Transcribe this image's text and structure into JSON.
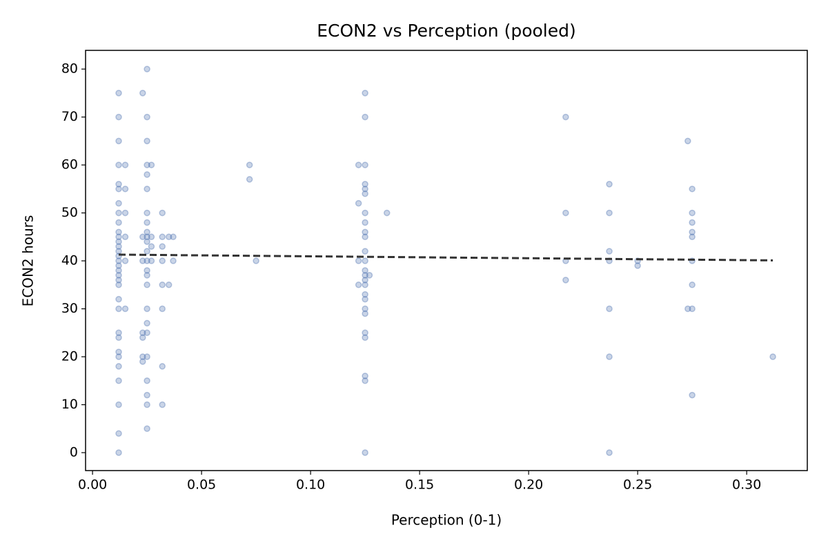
{
  "chart_data": {
    "type": "scatter",
    "title": "ECON2 vs Perception (pooled)",
    "x_label": "Perception (0-1)",
    "y_label": "ECON2 hours",
    "color": "#4c72b0",
    "alpha": 0.3,
    "x": [
      0.012,
      0.012,
      0.012,
      0.012,
      0.012,
      0.012,
      0.012,
      0.012,
      0.012,
      0.012,
      0.012,
      0.012,
      0.012,
      0.012,
      0.012,
      0.012,
      0.012,
      0.012,
      0.012,
      0.012,
      0.012,
      0.012,
      0.012,
      0.012,
      0.012,
      0.012,
      0.012,
      0.012,
      0.012,
      0.012,
      0.012,
      0.012,
      0.015,
      0.015,
      0.015,
      0.015,
      0.015,
      0.015,
      0.023,
      0.023,
      0.023,
      0.023,
      0.023,
      0.023,
      0.023,
      0.025,
      0.025,
      0.025,
      0.025,
      0.025,
      0.025,
      0.025,
      0.025,
      0.025,
      0.025,
      0.025,
      0.025,
      0.025,
      0.025,
      0.025,
      0.025,
      0.025,
      0.025,
      0.025,
      0.025,
      0.025,
      0.025,
      0.025,
      0.025,
      0.027,
      0.027,
      0.027,
      0.027,
      0.032,
      0.032,
      0.032,
      0.032,
      0.032,
      0.032,
      0.032,
      0.032,
      0.035,
      0.035,
      0.037,
      0.037,
      0.072,
      0.072,
      0.075,
      0.122,
      0.122,
      0.122,
      0.122,
      0.125,
      0.125,
      0.125,
      0.125,
      0.125,
      0.125,
      0.125,
      0.125,
      0.125,
      0.125,
      0.125,
      0.125,
      0.125,
      0.125,
      0.125,
      0.125,
      0.125,
      0.125,
      0.125,
      0.125,
      0.125,
      0.125,
      0.125,
      0.125,
      0.125,
      0.127,
      0.135,
      0.217,
      0.217,
      0.217,
      0.217,
      0.237,
      0.237,
      0.237,
      0.237,
      0.237,
      0.237,
      0.237,
      0.25,
      0.25,
      0.273,
      0.273,
      0.275,
      0.275,
      0.275,
      0.275,
      0.275,
      0.275,
      0.275,
      0.275,
      0.275,
      0.312
    ],
    "y": [
      75,
      70,
      65,
      60,
      56,
      55,
      52,
      50,
      48,
      46,
      45,
      44,
      43,
      42,
      41,
      40,
      39,
      38,
      37,
      36,
      35,
      32,
      30,
      25,
      24,
      21,
      20,
      18,
      15,
      10,
      4,
      0,
      60,
      55,
      50,
      45,
      40,
      30,
      75,
      45,
      40,
      25,
      24,
      20,
      19,
      80,
      70,
      65,
      60,
      58,
      55,
      50,
      48,
      46,
      45,
      44,
      42,
      40,
      38,
      37,
      35,
      30,
      27,
      25,
      20,
      15,
      12,
      10,
      5,
      60,
      45,
      43,
      40,
      50,
      45,
      43,
      40,
      35,
      30,
      18,
      10,
      45,
      35,
      45,
      40,
      60,
      57,
      40,
      60,
      52,
      40,
      35,
      75,
      70,
      60,
      56,
      55,
      54,
      50,
      48,
      46,
      45,
      42,
      40,
      38,
      37,
      36,
      35,
      33,
      32,
      30,
      29,
      25,
      24,
      16,
      15,
      0,
      37,
      50,
      70,
      50,
      40,
      36,
      56,
      50,
      42,
      40,
      30,
      20,
      0,
      40,
      39,
      65,
      30,
      55,
      50,
      48,
      46,
      45,
      40,
      35,
      30,
      12,
      20
    ],
    "trend": {
      "x": [
        0.012,
        0.312
      ],
      "y": [
        41.3,
        40.1
      ],
      "color": "#333333"
    },
    "xlim": [
      -0.0032,
      0.3278
    ],
    "ylim": [
      -3.74,
      83.9
    ],
    "xticks": [
      {
        "value": 0,
        "label": "0.00"
      },
      0.05,
      {
        "value": 0.1,
        "label": "0.10"
      },
      0.15,
      {
        "value": 0.2,
        "label": "0.20"
      },
      0.25,
      {
        "value": 0.3,
        "label": "0.30"
      }
    ],
    "yticks": [
      0,
      10,
      20,
      30,
      40,
      50,
      60,
      70,
      80
    ]
  }
}
